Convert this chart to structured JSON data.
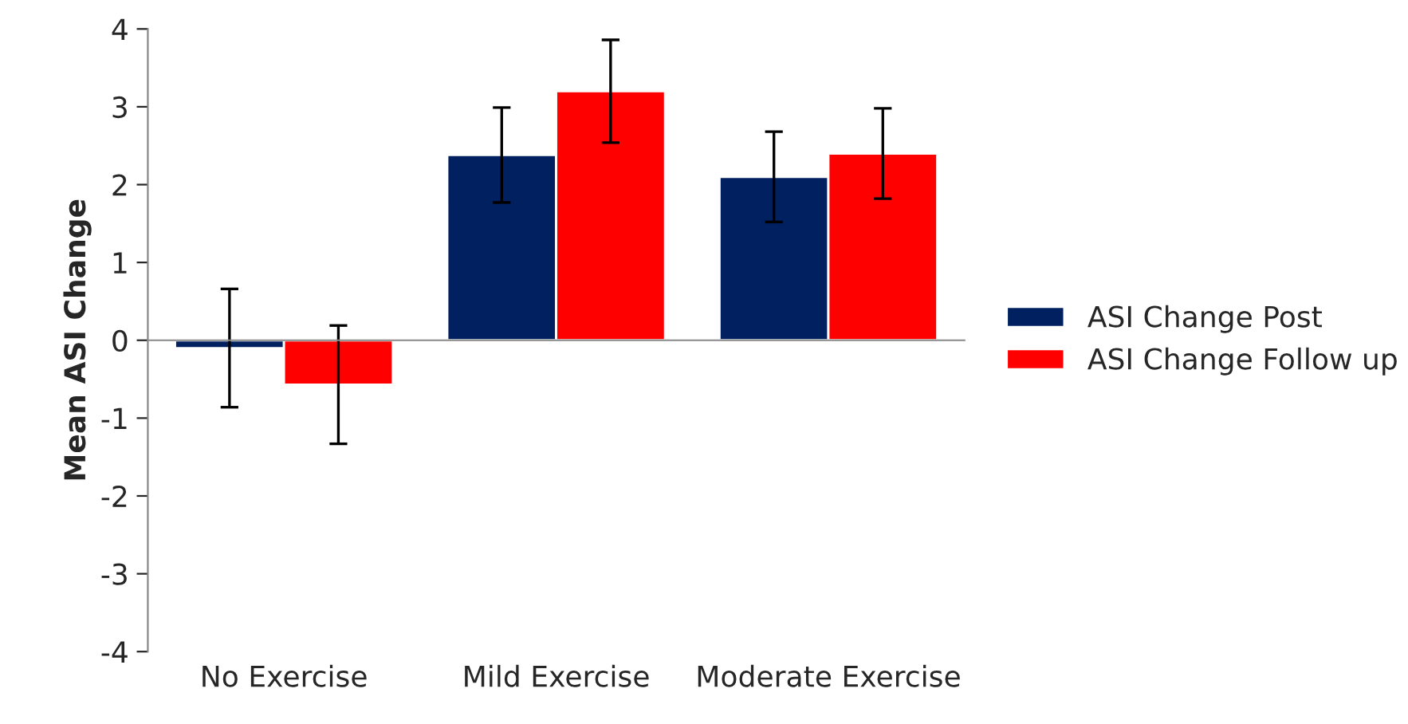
{
  "chart_data": {
    "type": "bar",
    "ylabel": "Mean ASI Change",
    "categories": [
      "No Exercise",
      "Mild Exercise",
      "Moderate Exercise"
    ],
    "series": [
      {
        "name": "ASI Change Post",
        "color": "#002060",
        "values": [
          -0.1,
          2.38,
          2.1
        ],
        "errors": [
          0.76,
          0.61,
          0.58
        ]
      },
      {
        "name": "ASI Change Follow up",
        "color": "#ff0000",
        "values": [
          -0.57,
          3.2,
          2.4
        ],
        "errors": [
          0.76,
          0.66,
          0.58
        ]
      }
    ],
    "ylim": [
      -4,
      4
    ],
    "yticks": [
      -4,
      -3,
      -2,
      -1,
      0,
      1,
      2,
      3,
      4
    ],
    "legend": "right"
  }
}
